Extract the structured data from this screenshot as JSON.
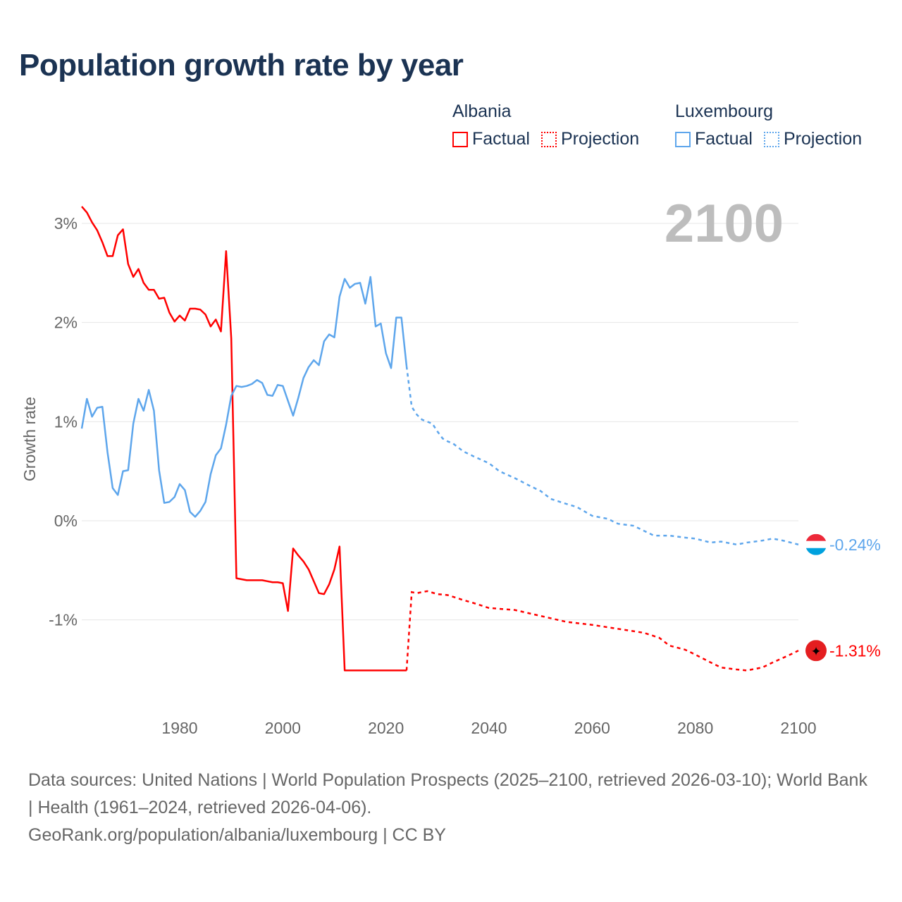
{
  "title": "Population growth rate by year",
  "legend": {
    "groups": [
      {
        "name": "Albania",
        "color": "#ff0000",
        "factual": "Factual",
        "projection": "Projection"
      },
      {
        "name": "Luxembourg",
        "color": "#5ea6ec",
        "factual": "Factual",
        "projection": "Projection"
      }
    ]
  },
  "footer": {
    "sources": "Data sources: United Nations | World Population Prospects (2025–2100, retrieved 2026-03-10); World Bank | Health (1961–2024, retrieved 2026-04-06).",
    "link": "GeoRank.org/population/albania/luxembourg | CC BY"
  },
  "chart_data": {
    "type": "line",
    "title": "Population growth rate by year",
    "ylabel": "Growth rate",
    "xlabel": "",
    "year_display": "2100",
    "xlim": [
      1961,
      2100
    ],
    "ylim": [
      -1.8,
      3.3
    ],
    "x_ticks": [
      1980,
      2000,
      2020,
      2040,
      2060,
      2080,
      2100
    ],
    "y_ticks": [
      {
        "value": 3,
        "label": "3%"
      },
      {
        "value": 2,
        "label": "2%"
      },
      {
        "value": 1,
        "label": "1%"
      },
      {
        "value": 0,
        "label": "0%"
      },
      {
        "value": -1,
        "label": "-1%"
      }
    ],
    "grid": true,
    "series": [
      {
        "name": "Albania",
        "color": "#ff0000",
        "end_label": "-1.31%",
        "factual_start": 1961,
        "factual": [
          3.17,
          3.11,
          3.01,
          2.93,
          2.81,
          2.67,
          2.67,
          2.88,
          2.94,
          2.59,
          2.46,
          2.54,
          2.4,
          2.33,
          2.33,
          2.24,
          2.25,
          2.1,
          2.01,
          2.07,
          2.02,
          2.14,
          2.14,
          2.13,
          2.08,
          1.96,
          2.03,
          1.91,
          2.72,
          1.84,
          -0.58,
          -0.59,
          -0.6,
          -0.6,
          -0.6,
          -0.6,
          -0.61,
          -0.62,
          -0.62,
          -0.63,
          -0.91,
          -0.28,
          -0.35,
          -0.41,
          -0.49,
          -0.61,
          -0.73,
          -0.74,
          -0.64,
          -0.49,
          -0.26,
          -1.51,
          -1.51,
          -1.51,
          -1.51,
          -1.51,
          -1.51,
          -1.51,
          -1.51,
          -1.51,
          -1.51,
          -1.51,
          -1.51,
          -1.51
        ],
        "projection": [
          [
            2024,
            -1.51
          ],
          [
            2025,
            -0.72
          ],
          [
            2026,
            -0.73
          ],
          [
            2028,
            -0.71
          ],
          [
            2030,
            -0.74
          ],
          [
            2032,
            -0.75
          ],
          [
            2035,
            -0.8
          ],
          [
            2037,
            -0.83
          ],
          [
            2040,
            -0.88
          ],
          [
            2045,
            -0.9
          ],
          [
            2050,
            -0.96
          ],
          [
            2055,
            -1.02
          ],
          [
            2060,
            -1.05
          ],
          [
            2065,
            -1.09
          ],
          [
            2070,
            -1.13
          ],
          [
            2073,
            -1.18
          ],
          [
            2075,
            -1.26
          ],
          [
            2078,
            -1.3
          ],
          [
            2080,
            -1.35
          ],
          [
            2083,
            -1.43
          ],
          [
            2085,
            -1.48
          ],
          [
            2088,
            -1.5
          ],
          [
            2090,
            -1.51
          ],
          [
            2093,
            -1.48
          ],
          [
            2095,
            -1.43
          ],
          [
            2098,
            -1.36
          ],
          [
            2100,
            -1.31
          ]
        ]
      },
      {
        "name": "Luxembourg",
        "color": "#5ea6ec",
        "end_label": "-0.24%",
        "factual_start": 1961,
        "factual": [
          0.93,
          1.23,
          1.05,
          1.14,
          1.15,
          0.69,
          0.33,
          0.26,
          0.5,
          0.51,
          0.98,
          1.23,
          1.11,
          1.32,
          1.11,
          0.51,
          0.18,
          0.19,
          0.24,
          0.37,
          0.31,
          0.09,
          0.04,
          0.1,
          0.19,
          0.47,
          0.66,
          0.73,
          0.97,
          1.26,
          1.36,
          1.35,
          1.36,
          1.38,
          1.42,
          1.39,
          1.27,
          1.26,
          1.37,
          1.36,
          1.21,
          1.06,
          1.24,
          1.44,
          1.55,
          1.62,
          1.57,
          1.81,
          1.88,
          1.85,
          2.26,
          2.44,
          2.35,
          2.39,
          2.4,
          2.19,
          2.46,
          1.96,
          1.99,
          1.69,
          1.54,
          2.05,
          2.05,
          1.56
        ],
        "projection": [
          [
            2024,
            1.56
          ],
          [
            2025,
            1.15
          ],
          [
            2026,
            1.07
          ],
          [
            2027,
            1.02
          ],
          [
            2028,
            1.0
          ],
          [
            2029,
            0.98
          ],
          [
            2030,
            0.9
          ],
          [
            2031,
            0.83
          ],
          [
            2032,
            0.8
          ],
          [
            2033,
            0.78
          ],
          [
            2035,
            0.7
          ],
          [
            2037,
            0.65
          ],
          [
            2040,
            0.58
          ],
          [
            2042,
            0.5
          ],
          [
            2045,
            0.43
          ],
          [
            2048,
            0.35
          ],
          [
            2050,
            0.3
          ],
          [
            2052,
            0.22
          ],
          [
            2055,
            0.17
          ],
          [
            2057,
            0.14
          ],
          [
            2060,
            0.05
          ],
          [
            2063,
            0.02
          ],
          [
            2065,
            -0.03
          ],
          [
            2068,
            -0.05
          ],
          [
            2070,
            -0.1
          ],
          [
            2072,
            -0.15
          ],
          [
            2075,
            -0.15
          ],
          [
            2078,
            -0.17
          ],
          [
            2080,
            -0.18
          ],
          [
            2083,
            -0.22
          ],
          [
            2085,
            -0.21
          ],
          [
            2088,
            -0.24
          ],
          [
            2090,
            -0.22
          ],
          [
            2093,
            -0.2
          ],
          [
            2095,
            -0.18
          ],
          [
            2097,
            -0.2
          ],
          [
            2100,
            -0.24
          ]
        ]
      }
    ]
  }
}
